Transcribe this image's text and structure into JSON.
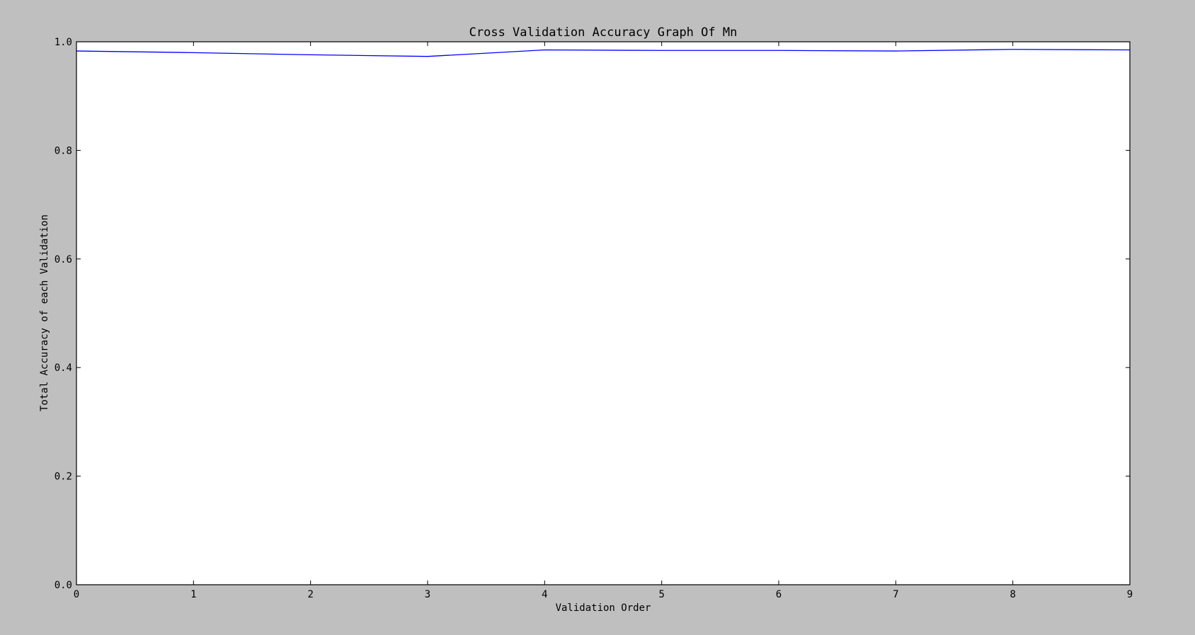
{
  "chart_data": {
    "type": "line",
    "title": "Cross Validation Accuracy Graph Of Mn",
    "xlabel": "Validation Order",
    "ylabel": "Total Accuracy of each Validation",
    "xlim": [
      0,
      9
    ],
    "ylim": [
      0.0,
      1.0
    ],
    "xticks": [
      "0",
      "1",
      "2",
      "3",
      "4",
      "5",
      "6",
      "7",
      "8",
      "9"
    ],
    "yticks": [
      "0.0",
      "0.2",
      "0.4",
      "0.6",
      "0.8",
      "1.0"
    ],
    "grid": false,
    "x": [
      0,
      1,
      2,
      3,
      4,
      5,
      6,
      7,
      8,
      9
    ],
    "series": [
      {
        "values": [
          0.983,
          0.98,
          0.976,
          0.973,
          0.985,
          0.984,
          0.984,
          0.983,
          0.986,
          0.985
        ],
        "color": "#0000ff"
      }
    ]
  }
}
